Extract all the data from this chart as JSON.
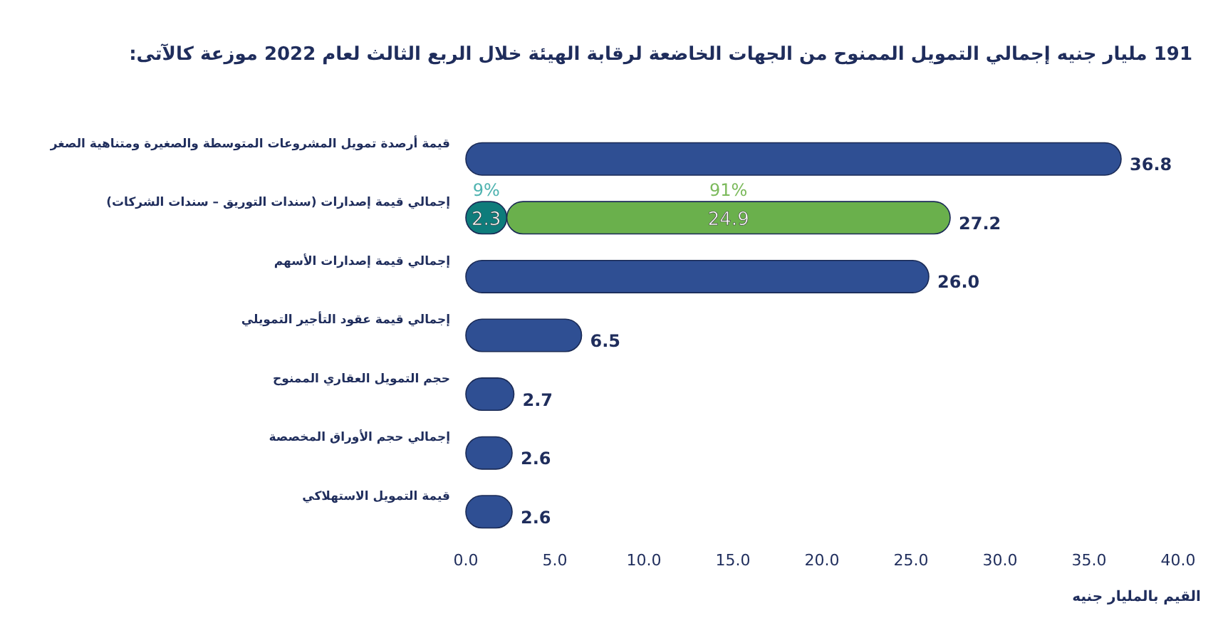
{
  "chart_data": {
    "type": "bar",
    "orientation": "horizontal",
    "stacked": true,
    "title": "191 مليار جنيه إجمالي التمويل الممنوح من الجهات الخاضعة لرقابة الهيئة خلال الربع الثالث لعام 2022 موزعة كالآتى:",
    "xlabel": "القيم بالمليار جنيه",
    "categories": [
      "قيمة أرصدة تمويل المشروعات المتوسطة والصغيرة ومتناهية الصغر",
      "إجمالي قيمة إصدارات (سندات التوريق – سندات الشركات)",
      "إجمالي قيمة إصدارات الأسهم",
      "إجمالي قيمة عقود التأجير التمويلي",
      "حجم التمويل العقاري الممنوح",
      "إجمالي حجم الأوراق المخصصة",
      "قيمة التمويل الاستهلاكي"
    ],
    "series": [
      {
        "color": "#2f4f93",
        "values": [
          36.8,
          null,
          26.0,
          6.5,
          2.7,
          2.6,
          2.6
        ],
        "value_labels": [
          "36.8",
          null,
          "26.0",
          "6.5",
          "2.7",
          "2.6",
          "2.6"
        ]
      },
      {
        "color": "#0e7c7b",
        "values": [
          null,
          2.3,
          null,
          null,
          null,
          null,
          null
        ],
        "value_labels": [
          null,
          "2.3",
          null,
          null,
          null,
          null,
          null
        ]
      },
      {
        "color": "#6ab04c",
        "values": [
          null,
          24.9,
          null,
          null,
          null,
          null,
          null
        ],
        "value_labels": [
          null,
          "24.9",
          null,
          null,
          null,
          null,
          null
        ]
      }
    ],
    "totals": [
      null,
      "27.2",
      null,
      null,
      null,
      null,
      null
    ],
    "annotations": [
      {
        "text": "9%",
        "x": 1.15,
        "y": "إجمالي قيمة إصدارات (سندات التوريق – سندات الشركات)"
      },
      {
        "text": "91%",
        "x": 14.75,
        "y": "إجمالي قيمة إصدارات (سندات التوريق – سندات الشركات)"
      }
    ],
    "xlim": [
      0,
      40
    ],
    "xticks": [
      {
        "value": 0,
        "label": "0.0"
      },
      {
        "value": 5,
        "label": "5.0"
      },
      {
        "value": 10,
        "label": "10.0"
      },
      {
        "value": 15,
        "label": "15.0"
      },
      {
        "value": 20,
        "label": "20.0"
      },
      {
        "value": 25,
        "label": "25.0"
      },
      {
        "value": 30,
        "label": "30.0"
      },
      {
        "value": 35,
        "label": "35.0"
      },
      {
        "value": 40,
        "label": "40.0"
      }
    ],
    "grid": false
  }
}
